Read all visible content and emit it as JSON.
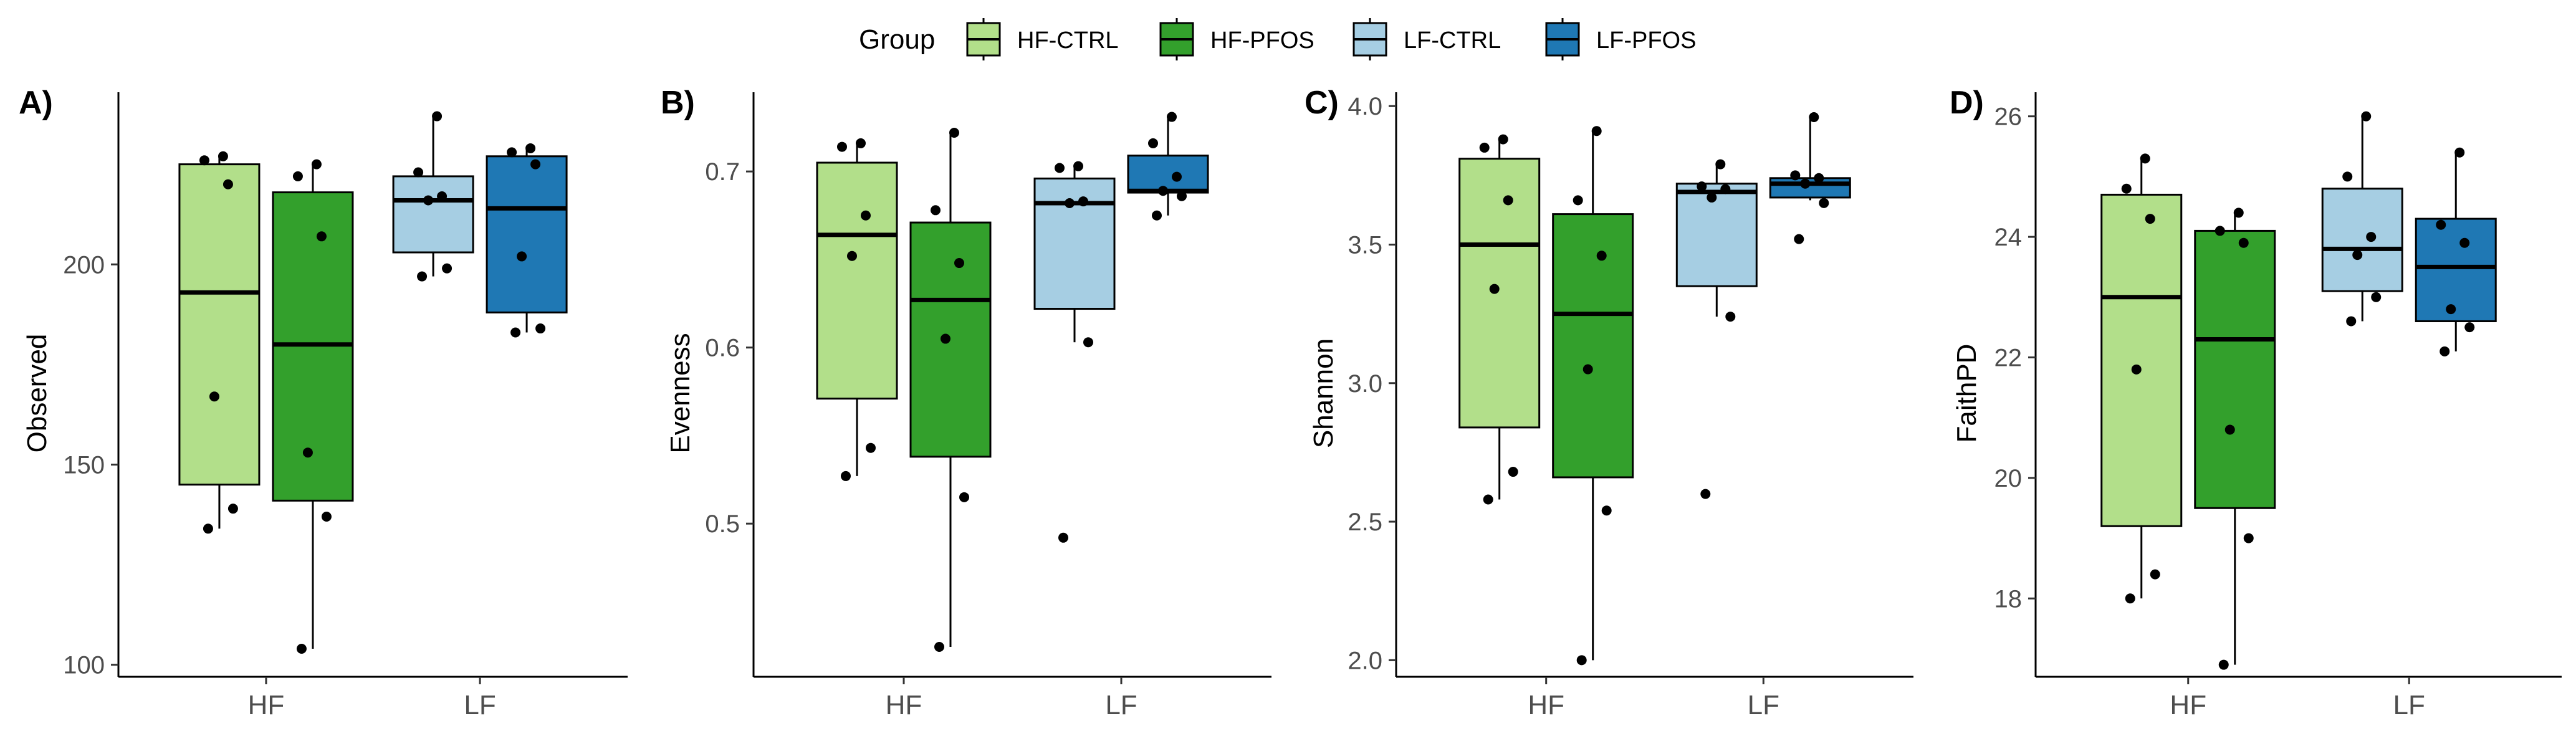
{
  "legend": {
    "title": "Group",
    "items": [
      {
        "label": "HF-CTRL",
        "color": "#b2df8a"
      },
      {
        "label": "HF-PFOS",
        "color": "#33a02c"
      },
      {
        "label": "LF-CTRL",
        "color": "#a6cee3"
      },
      {
        "label": "LF-PFOS",
        "color": "#1f78b4"
      }
    ],
    "position": "top-center"
  },
  "chart_data": [
    {
      "type": "box",
      "tag": "A)",
      "ylabel": "Observed",
      "categories": [
        "HF",
        "LF"
      ],
      "ylim": [
        97,
        243
      ],
      "yticks": [
        100,
        150,
        200
      ],
      "boxes": [
        {
          "group": "HF-CTRL",
          "category": "HF",
          "q1": 145,
          "median": 193,
          "q3": 225,
          "whisker_low": 134,
          "whisker_high": 227,
          "points": [
            134,
            139,
            167,
            220,
            226,
            227
          ]
        },
        {
          "group": "HF-PFOS",
          "category": "HF",
          "q1": 141,
          "median": 180,
          "q3": 218,
          "whisker_low": 104,
          "whisker_high": 225,
          "points": [
            104,
            137,
            153,
            207,
            222,
            225
          ]
        },
        {
          "group": "LF-CTRL",
          "category": "LF",
          "q1": 203,
          "median": 216,
          "q3": 222,
          "whisker_low": 197,
          "whisker_high": 237,
          "points": [
            197,
            199,
            216,
            217,
            223,
            237
          ]
        },
        {
          "group": "LF-PFOS",
          "category": "LF",
          "q1": 188,
          "median": 214,
          "q3": 227,
          "whisker_low": 183,
          "whisker_high": 229,
          "points": [
            183,
            184,
            202,
            225,
            228,
            229
          ]
        }
      ]
    },
    {
      "type": "box",
      "tag": "B)",
      "ylabel": "Evenness",
      "categories": [
        "HF",
        "LF"
      ],
      "ylim": [
        0.413,
        0.745
      ],
      "yticks": [
        0.5,
        0.6,
        0.7
      ],
      "boxes": [
        {
          "group": "HF-CTRL",
          "category": "HF",
          "q1": 0.571,
          "median": 0.664,
          "q3": 0.705,
          "whisker_low": 0.527,
          "whisker_high": 0.716,
          "points": [
            0.527,
            0.543,
            0.652,
            0.675,
            0.714,
            0.716
          ]
        },
        {
          "group": "HF-PFOS",
          "category": "HF",
          "q1": 0.538,
          "median": 0.627,
          "q3": 0.671,
          "whisker_low": 0.43,
          "whisker_high": 0.722,
          "points": [
            0.43,
            0.515,
            0.605,
            0.648,
            0.678,
            0.722
          ]
        },
        {
          "group": "LF-CTRL",
          "category": "LF",
          "q1": 0.622,
          "median": 0.682,
          "q3": 0.696,
          "whisker_low": 0.603,
          "whisker_high": 0.703,
          "points": [
            0.492,
            0.603,
            0.682,
            0.683,
            0.702,
            0.703
          ]
        },
        {
          "group": "LF-PFOS",
          "category": "LF",
          "q1": 0.688,
          "median": 0.689,
          "q3": 0.709,
          "whisker_low": 0.675,
          "whisker_high": 0.731,
          "points": [
            0.675,
            0.686,
            0.689,
            0.697,
            0.716,
            0.731
          ]
        }
      ]
    },
    {
      "type": "box",
      "tag": "C)",
      "ylabel": "Shannon",
      "categories": [
        "HF",
        "LF"
      ],
      "ylim": [
        1.94,
        4.05
      ],
      "yticks": [
        2.0,
        2.5,
        3.0,
        3.5,
        4.0
      ],
      "boxes": [
        {
          "group": "HF-CTRL",
          "category": "HF",
          "q1": 2.84,
          "median": 3.5,
          "q3": 3.81,
          "whisker_low": 2.58,
          "whisker_high": 3.88,
          "points": [
            2.58,
            2.68,
            3.34,
            3.66,
            3.85,
            3.88
          ]
        },
        {
          "group": "HF-PFOS",
          "category": "HF",
          "q1": 2.66,
          "median": 3.25,
          "q3": 3.61,
          "whisker_low": 2.0,
          "whisker_high": 3.91,
          "points": [
            2.0,
            2.54,
            3.05,
            3.46,
            3.66,
            3.91
          ]
        },
        {
          "group": "LF-CTRL",
          "category": "LF",
          "q1": 3.35,
          "median": 3.69,
          "q3": 3.72,
          "whisker_low": 3.24,
          "whisker_high": 3.79,
          "points": [
            2.6,
            3.24,
            3.67,
            3.7,
            3.71,
            3.79
          ]
        },
        {
          "group": "LF-PFOS",
          "category": "LF",
          "q1": 3.67,
          "median": 3.72,
          "q3": 3.74,
          "whisker_low": 3.66,
          "whisker_high": 3.96,
          "points": [
            3.52,
            3.65,
            3.72,
            3.74,
            3.75,
            3.96
          ]
        }
      ]
    },
    {
      "type": "box",
      "tag": "D)",
      "ylabel": "FaithPD",
      "categories": [
        "HF",
        "LF"
      ],
      "ylim": [
        16.7,
        26.4
      ],
      "yticks": [
        18,
        20,
        22,
        24,
        26
      ],
      "boxes": [
        {
          "group": "HF-CTRL",
          "category": "HF",
          "q1": 19.2,
          "median": 23.0,
          "q3": 24.7,
          "whisker_low": 18.0,
          "whisker_high": 25.3,
          "points": [
            18.0,
            18.4,
            21.8,
            24.3,
            24.8,
            25.3
          ]
        },
        {
          "group": "HF-PFOS",
          "category": "HF",
          "q1": 19.5,
          "median": 22.3,
          "q3": 24.1,
          "whisker_low": 16.9,
          "whisker_high": 24.4,
          "points": [
            16.9,
            19.0,
            20.8,
            23.9,
            24.1,
            24.4
          ]
        },
        {
          "group": "LF-CTRL",
          "category": "LF",
          "q1": 23.1,
          "median": 23.8,
          "q3": 24.8,
          "whisker_low": 22.6,
          "whisker_high": 26.0,
          "points": [
            22.6,
            23.0,
            23.7,
            24.0,
            25.0,
            26.0
          ]
        },
        {
          "group": "LF-PFOS",
          "category": "LF",
          "q1": 22.6,
          "median": 23.5,
          "q3": 24.3,
          "whisker_low": 22.1,
          "whisker_high": 25.4,
          "points": [
            22.1,
            22.5,
            22.8,
            23.9,
            24.2,
            25.4
          ]
        }
      ]
    }
  ]
}
